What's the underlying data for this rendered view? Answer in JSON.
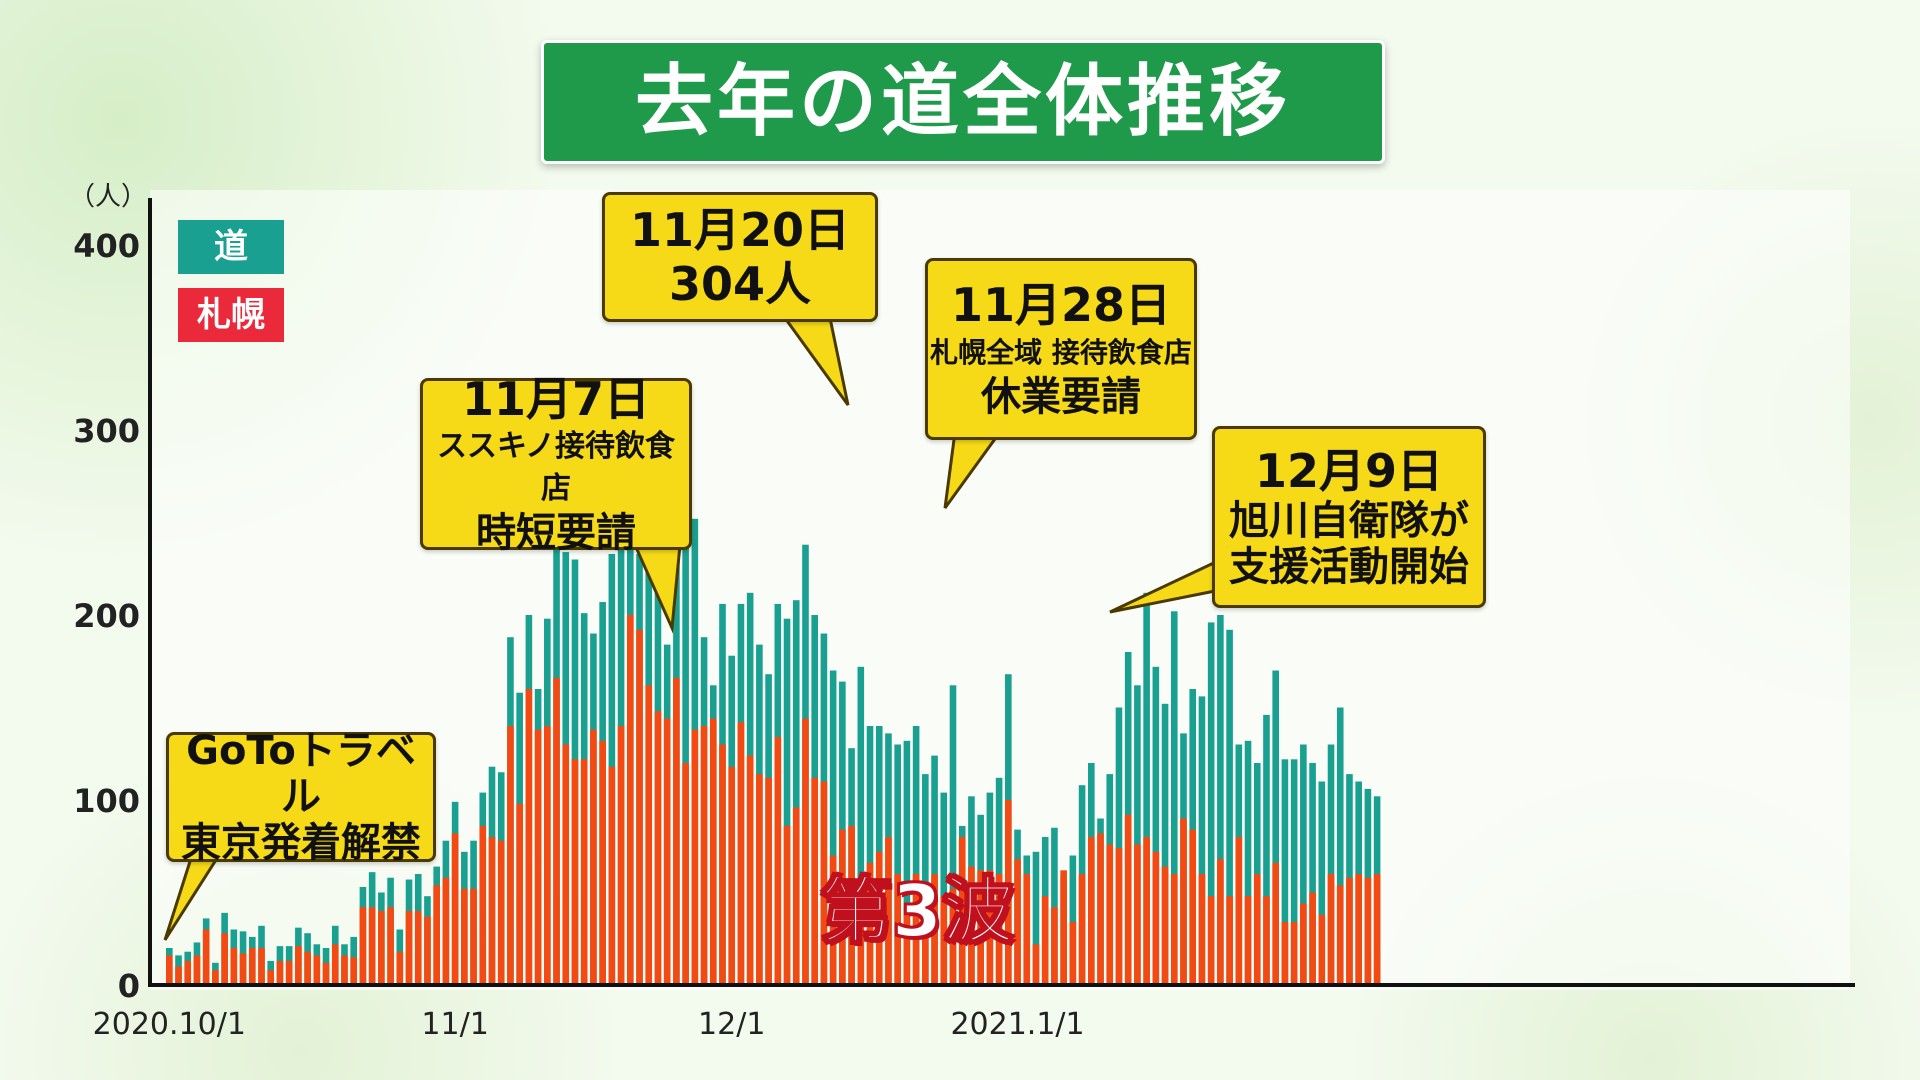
{
  "title": "去年の道全体推移",
  "legend": {
    "dou": "道",
    "sapporo": "札幌"
  },
  "wave_label": "第3波",
  "colors": {
    "dou": "#19a091",
    "sapporo": "#f24a12",
    "title_bg": "#1f9a4a",
    "callout_bg": "#f6da17"
  },
  "callouts": {
    "goto": {
      "line1": "GoToトラベル",
      "line2": "東京発着解禁"
    },
    "nov7": {
      "line1": "11月7日",
      "line2": "ススキノ接待飲食店",
      "line3": "時短要請"
    },
    "nov20": {
      "line1": "11月20日",
      "line2": "304人"
    },
    "nov28": {
      "line1": "11月28日",
      "line2": "札幌全域 接待飲食店",
      "line3": "休業要請"
    },
    "dec9": {
      "line1": "12月9日",
      "line2": "旭川自衛隊が",
      "line3": "支援活動開始"
    }
  },
  "chart_data": {
    "type": "bar",
    "ylabel": "（人）",
    "ylim": [
      0,
      400
    ],
    "yticks": [
      "0",
      "100",
      "200",
      "300",
      "400"
    ],
    "xticks": [
      "2020.10/1",
      "11/1",
      "12/1",
      "2021.1/1"
    ],
    "series": [
      {
        "name": "道",
        "values": [
          20,
          16,
          18,
          23,
          36,
          12,
          39,
          30,
          29,
          26,
          32,
          13,
          21,
          21,
          31,
          28,
          22,
          20,
          32,
          22,
          26,
          53,
          61,
          50,
          58,
          30,
          57,
          60,
          48,
          64,
          78,
          99,
          72,
          78,
          104,
          118,
          115,
          188,
          158,
          200,
          160,
          198,
          236,
          234,
          230,
          201,
          190,
          207,
          233,
          268,
          304,
          233,
          246,
          220,
          184,
          258,
          252,
          252,
          188,
          162,
          206,
          178,
          206,
          212,
          184,
          168,
          206,
          198,
          208,
          238,
          200,
          190,
          170,
          164,
          128,
          172,
          140,
          140,
          136,
          130,
          132,
          140,
          114,
          124,
          104,
          162,
          86,
          102,
          92,
          104,
          112,
          168,
          84,
          70,
          72,
          80,
          85,
          58,
          70,
          108,
          120,
          90,
          114,
          150,
          180,
          162,
          212,
          172,
          152,
          202,
          136,
          160,
          156,
          196,
          200,
          192,
          130,
          132,
          120,
          146,
          170,
          122,
          122,
          130,
          120,
          110,
          130,
          150,
          114,
          110,
          106,
          102
        ]
      },
      {
        "name": "札幌",
        "values": [
          16,
          10,
          13,
          16,
          30,
          8,
          28,
          20,
          17,
          20,
          20,
          8,
          13,
          13,
          21,
          18,
          16,
          12,
          22,
          16,
          15,
          42,
          42,
          40,
          42,
          18,
          40,
          40,
          37,
          54,
          58,
          82,
          52,
          52,
          86,
          80,
          78,
          140,
          98,
          160,
          138,
          140,
          166,
          130,
          122,
          122,
          138,
          132,
          118,
          140,
          200,
          192,
          162,
          148,
          144,
          166,
          120,
          138,
          140,
          144,
          130,
          118,
          142,
          124,
          114,
          112,
          134,
          86,
          96,
          144,
          112,
          110,
          70,
          84,
          86,
          32,
          66,
          72,
          80,
          60,
          40,
          60,
          50,
          60,
          48,
          52,
          80,
          64,
          62,
          62,
          60,
          100,
          68,
          60,
          22,
          48,
          42,
          62,
          34,
          60,
          80,
          82,
          76,
          74,
          92,
          76,
          80,
          72,
          64,
          60,
          90,
          84,
          60,
          48,
          68,
          48,
          80,
          48,
          60,
          48,
          66,
          34,
          34,
          44,
          50,
          38,
          60,
          54,
          58,
          60,
          58,
          60
        ]
      }
    ]
  }
}
